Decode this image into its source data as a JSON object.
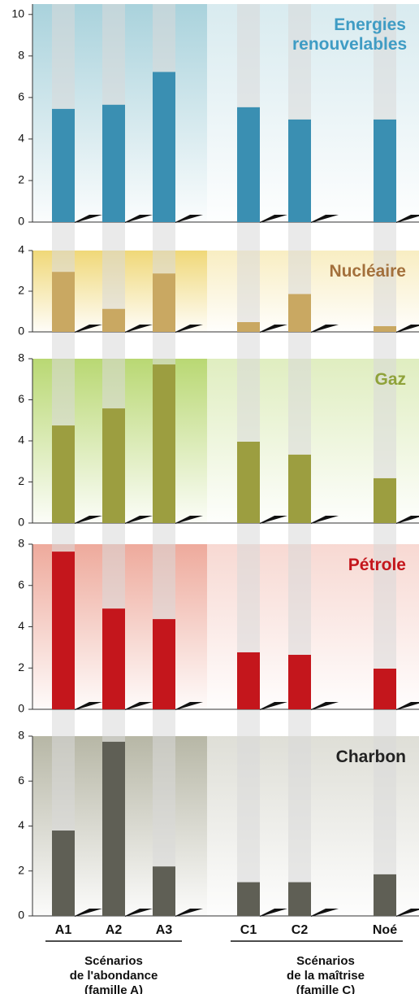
{
  "chart_data": [
    {
      "type": "bar",
      "title": "Energies renouvelables",
      "color": "#3a8fb2",
      "title_color": "#3f9cc4",
      "tint": "#a9d2dc",
      "values": [
        5.45,
        5.65,
        7.23,
        5.53,
        4.94,
        4.94
      ],
      "ylim": [
        0,
        10.5
      ],
      "yticks": [
        0,
        2,
        4,
        6,
        8,
        10
      ]
    },
    {
      "type": "bar",
      "title": "Nucléaire",
      "color": "#c9a862",
      "title_color": "#a3703c",
      "tint": "#f0d878",
      "values": [
        2.95,
        1.13,
        2.87,
        0.48,
        1.86,
        0.28
      ],
      "ylim": [
        0,
        4
      ],
      "yticks": [
        0,
        2,
        4
      ]
    },
    {
      "type": "bar",
      "title": "Gaz",
      "color": "#9c9e40",
      "title_color": "#8fa23a",
      "tint": "#b9d873",
      "values": [
        4.75,
        5.58,
        7.72,
        3.96,
        3.33,
        2.18
      ],
      "ylim": [
        0,
        8
      ],
      "yticks": [
        0,
        2,
        4,
        6,
        8
      ]
    },
    {
      "type": "bar",
      "title": "Pétrole",
      "color": "#c4161c",
      "title_color": "#c4161c",
      "tint": "#eeaa9c",
      "values": [
        7.64,
        4.88,
        4.37,
        2.76,
        2.64,
        1.97
      ],
      "ylim": [
        0,
        8
      ],
      "yticks": [
        0,
        2,
        4,
        6,
        8
      ]
    },
    {
      "type": "bar",
      "title": "Charbon",
      "color": "#5f5f55",
      "title_color": "#222222",
      "tint": "#b7b7a6",
      "categories": [
        "A1",
        "A2",
        "A3",
        "C1",
        "C2",
        "Noé"
      ],
      "values": [
        3.8,
        7.75,
        2.2,
        1.5,
        1.5,
        1.85
      ],
      "ylim": [
        0,
        8
      ],
      "yticks": [
        0,
        2,
        4,
        6,
        8
      ]
    }
  ],
  "groups": [
    {
      "lines": [
        "Scénarios",
        "de l'abondance",
        "(famille A)"
      ]
    },
    {
      "lines": [
        "Scénarios",
        "de la maîtrise",
        "(famille C)"
      ]
    }
  ]
}
